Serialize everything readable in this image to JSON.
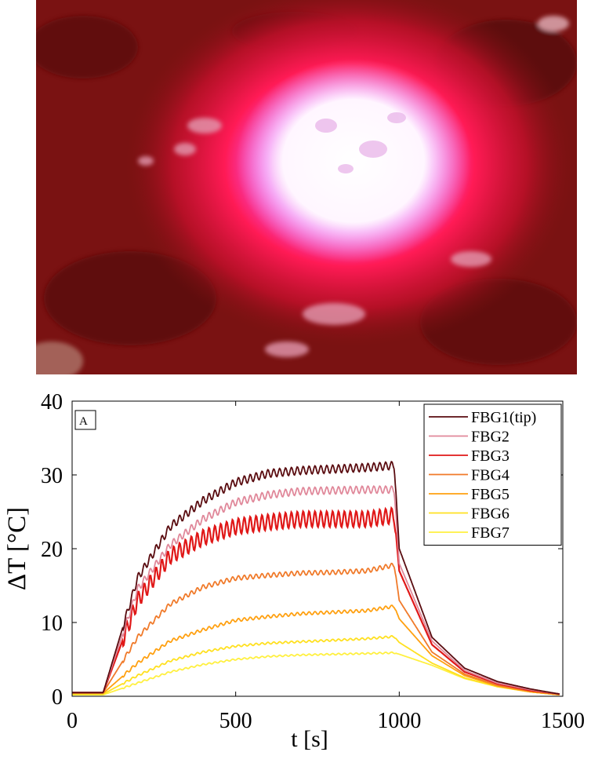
{
  "photo": {
    "description_icon": "laser-tissue-photo",
    "colors": {
      "background": "#7a1010",
      "glow": "#ff1a55",
      "core": "#ffffff"
    }
  },
  "chart_data": {
    "type": "line",
    "panel_label": "A",
    "xlabel": "t [s]",
    "ylabel": "ΔT [°C]",
    "xlim": [
      0,
      1500
    ],
    "ylim": [
      0,
      40
    ],
    "xticks": [
      0,
      500,
      1000,
      1500
    ],
    "yticks": [
      0,
      10,
      20,
      30,
      40
    ],
    "grid": false,
    "legend_position": "top-right",
    "heating_start_s": 95,
    "laser_off_s": 990,
    "series": [
      {
        "name": "FBG1(tip)",
        "color": "#5a0c10",
        "plateau": 31,
        "x": [
          0,
          95,
          200,
          300,
          400,
          500,
          600,
          700,
          800,
          900,
          985,
          1000,
          1100,
          1200,
          1300,
          1400,
          1490
        ],
        "y": [
          0.5,
          0.5,
          16,
          23,
          26.5,
          29,
          30.2,
          30.6,
          30.8,
          31,
          31.3,
          20,
          8,
          3.8,
          2,
          1,
          0.3
        ]
      },
      {
        "name": "FBG2",
        "color": "#e0889a",
        "plateau": 28,
        "x": [
          0,
          95,
          200,
          300,
          400,
          500,
          600,
          700,
          800,
          900,
          985,
          1000,
          1100,
          1200,
          1300,
          1400,
          1490
        ],
        "y": [
          0.5,
          0.5,
          14.5,
          20.5,
          24,
          26.3,
          27.3,
          27.8,
          27.9,
          28,
          28,
          18,
          7.5,
          3.5,
          1.8,
          0.9,
          0.3
        ]
      },
      {
        "name": "FBG3",
        "color": "#e01818",
        "plateau": 24,
        "x": [
          0,
          95,
          200,
          300,
          400,
          500,
          600,
          700,
          800,
          900,
          985,
          1000,
          1100,
          1200,
          1300,
          1400,
          1490
        ],
        "y": [
          0.5,
          0.5,
          13,
          19,
          21.5,
          23,
          23.6,
          24,
          24,
          24,
          24.5,
          17,
          7,
          3.3,
          1.7,
          0.8,
          0.3
        ]
      },
      {
        "name": "FBG4",
        "color": "#f07a2a",
        "plateau": 17,
        "x": [
          0,
          95,
          200,
          300,
          400,
          500,
          600,
          700,
          800,
          900,
          985,
          1000,
          1100,
          1200,
          1300,
          1400,
          1490
        ],
        "y": [
          0.5,
          0.5,
          8,
          12.5,
          14.8,
          16,
          16.4,
          16.7,
          16.8,
          17,
          17.8,
          13,
          6,
          3,
          1.5,
          0.7,
          0.3
        ]
      },
      {
        "name": "FBG5",
        "color": "#ffa010",
        "plateau": 11.5,
        "x": [
          0,
          95,
          200,
          300,
          400,
          500,
          600,
          700,
          800,
          900,
          985,
          1000,
          1100,
          1200,
          1300,
          1400,
          1490
        ],
        "y": [
          0.4,
          0.4,
          4.5,
          7.5,
          9,
          10.3,
          10.8,
          11.2,
          11.4,
          11.6,
          12.2,
          10.5,
          5.5,
          2.8,
          1.4,
          0.6,
          0.2
        ]
      },
      {
        "name": "FBG6",
        "color": "#ffe020",
        "plateau": 7.5,
        "x": [
          0,
          95,
          200,
          300,
          400,
          500,
          600,
          700,
          800,
          900,
          985,
          1000,
          1100,
          1200,
          1300,
          1400,
          1490
        ],
        "y": [
          0.3,
          0.3,
          2.8,
          4.8,
          6,
          6.8,
          7.2,
          7.4,
          7.6,
          7.8,
          8.1,
          7.3,
          4.5,
          2.5,
          1.3,
          0.6,
          0.2
        ]
      },
      {
        "name": "FBG7",
        "color": "#fff040",
        "plateau": 5.8,
        "x": [
          0,
          95,
          200,
          300,
          400,
          500,
          600,
          700,
          800,
          900,
          985,
          1000,
          1100,
          1200,
          1300,
          1400,
          1490
        ],
        "y": [
          0.2,
          0.2,
          1.8,
          3.3,
          4.3,
          5,
          5.4,
          5.6,
          5.7,
          5.8,
          5.9,
          5.7,
          4.2,
          2.4,
          1.3,
          0.6,
          0.2
        ]
      }
    ]
  }
}
